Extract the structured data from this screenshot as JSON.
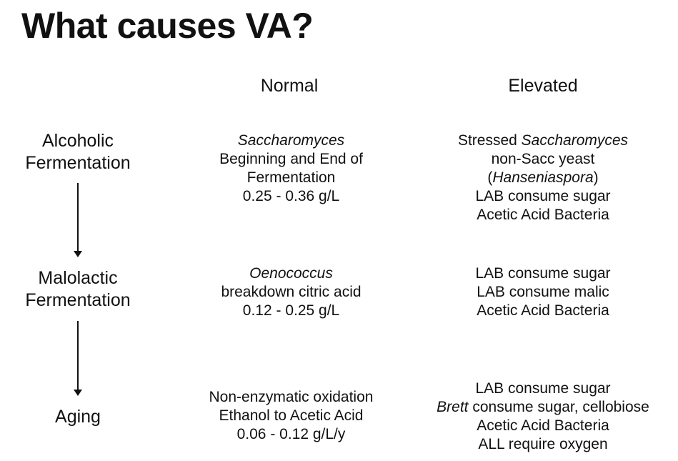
{
  "title": "What causes VA?",
  "headers": {
    "normal": "Normal",
    "elevated": "Elevated"
  },
  "stages": [
    {
      "name_lines": [
        "Alcoholic",
        "Fermentation"
      ],
      "normal": [
        {
          "parts": [
            {
              "t": "Saccharomyces",
              "i": true
            }
          ]
        },
        {
          "parts": [
            {
              "t": "Beginning and End of",
              "i": false
            }
          ]
        },
        {
          "parts": [
            {
              "t": "Fermentation",
              "i": false
            }
          ]
        },
        {
          "parts": [
            {
              "t": "0.25 - 0.36 g/L",
              "i": false
            }
          ]
        }
      ],
      "elevated": [
        {
          "parts": [
            {
              "t": "Stressed ",
              "i": false
            },
            {
              "t": "Saccharomyces",
              "i": true
            }
          ]
        },
        {
          "parts": [
            {
              "t": "non-Sacc yeast",
              "i": false
            }
          ]
        },
        {
          "parts": [
            {
              "t": "(",
              "i": false
            },
            {
              "t": "Hanseniaspora",
              "i": true
            },
            {
              "t": ")",
              "i": false
            }
          ]
        },
        {
          "parts": [
            {
              "t": "LAB consume sugar",
              "i": false
            }
          ]
        },
        {
          "parts": [
            {
              "t": "Acetic Acid Bacteria",
              "i": false
            }
          ]
        }
      ]
    },
    {
      "name_lines": [
        "Malolactic",
        "Fermentation"
      ],
      "normal": [
        {
          "parts": [
            {
              "t": "Oenococcus",
              "i": true
            }
          ]
        },
        {
          "parts": [
            {
              "t": "breakdown citric acid",
              "i": false
            }
          ]
        },
        {
          "parts": [
            {
              "t": "0.12 - 0.25 g/L",
              "i": false
            }
          ]
        }
      ],
      "elevated": [
        {
          "parts": [
            {
              "t": "LAB consume sugar",
              "i": false
            }
          ]
        },
        {
          "parts": [
            {
              "t": "LAB consume malic",
              "i": false
            }
          ]
        },
        {
          "parts": [
            {
              "t": "Acetic Acid Bacteria",
              "i": false
            }
          ]
        }
      ]
    },
    {
      "name_lines": [
        "Aging"
      ],
      "normal": [
        {
          "parts": [
            {
              "t": "Non-enzymatic oxidation",
              "i": false
            }
          ]
        },
        {
          "parts": [
            {
              "t": "Ethanol to Acetic Acid",
              "i": false
            }
          ]
        },
        {
          "parts": [
            {
              "t": "0.06 - 0.12 g/L/y",
              "i": false
            }
          ]
        }
      ],
      "elevated": [
        {
          "parts": [
            {
              "t": "LAB consume sugar",
              "i": false
            }
          ]
        },
        {
          "parts": [
            {
              "t": "Brett",
              "i": true
            },
            {
              "t": " consume sugar, cellobiose",
              "i": false
            }
          ]
        },
        {
          "parts": [
            {
              "t": "Acetic Acid Bacteria",
              "i": false
            }
          ]
        },
        {
          "parts": [
            {
              "t": "ALL require oxygen",
              "i": false
            }
          ]
        }
      ]
    }
  ]
}
